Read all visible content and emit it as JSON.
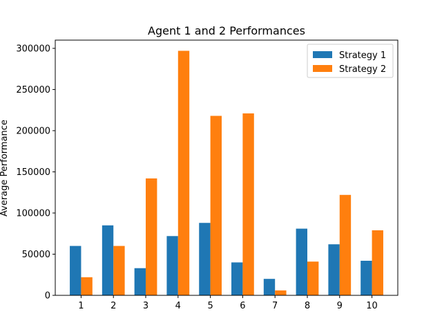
{
  "chart_data": {
    "type": "bar",
    "title": "Agent 1 and 2 Performances",
    "xlabel": "",
    "ylabel": "Average Performance",
    "categories": [
      "1",
      "2",
      "3",
      "4",
      "5",
      "6",
      "7",
      "8",
      "9",
      "10"
    ],
    "series": [
      {
        "name": "Strategy 1",
        "color": "#1f77b4",
        "values": [
          60000,
          85000,
          33000,
          72000,
          88000,
          40000,
          20000,
          81000,
          62000,
          42000
        ]
      },
      {
        "name": "Strategy 2",
        "color": "#ff7f0e",
        "values": [
          22000,
          60000,
          142000,
          297000,
          218000,
          221000,
          6000,
          41000,
          122000,
          79000
        ]
      }
    ],
    "ylim": [
      0,
      310000
    ],
    "yticks": [
      0,
      50000,
      100000,
      150000,
      200000,
      250000,
      300000
    ],
    "ytick_labels": [
      "0",
      "50000",
      "100000",
      "150000",
      "200000",
      "250000",
      "300000"
    ],
    "grid": false,
    "legend_position": "top-right"
  }
}
